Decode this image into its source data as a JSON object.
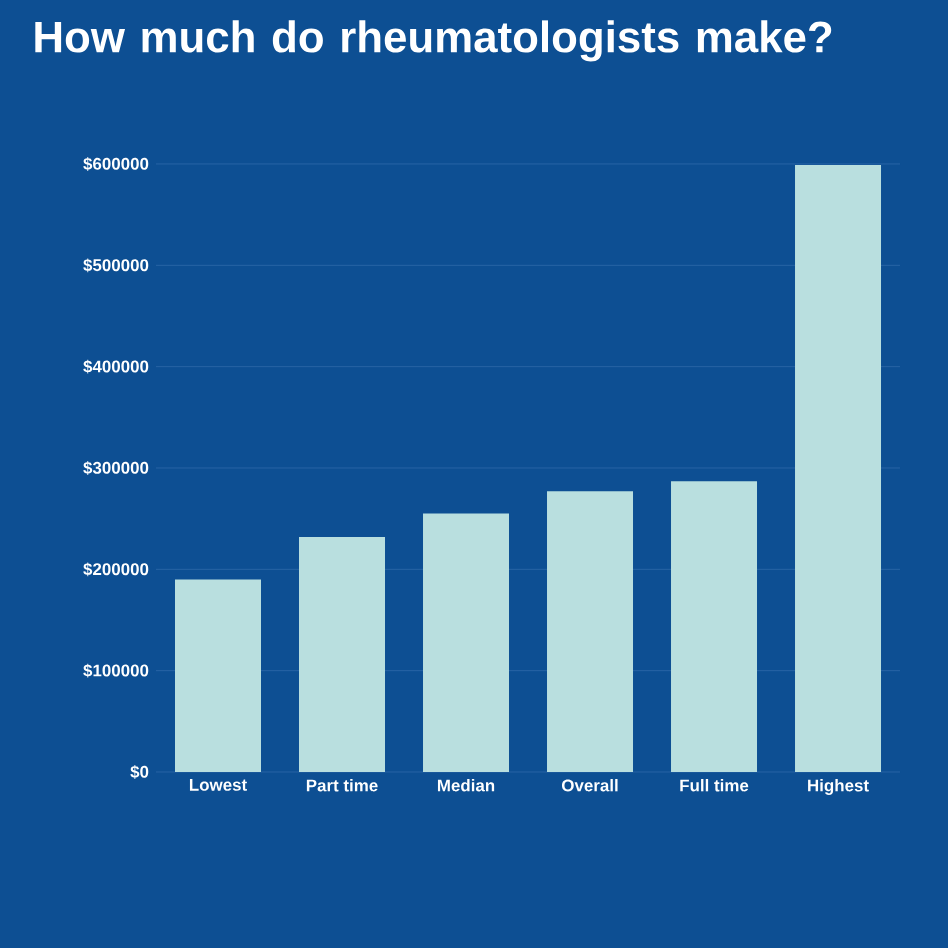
{
  "chart_data": {
    "type": "bar",
    "title": "How much do rheumatologists make?",
    "categories": [
      "Lowest",
      "Part time",
      "Median",
      "Overall",
      "Full time",
      "Highest"
    ],
    "values": [
      190000,
      232000,
      255000,
      277000,
      287000,
      599000
    ],
    "color": "#b9dfdf",
    "ylim": [
      0,
      600000
    ],
    "yticks": [
      {
        "value": 0,
        "label": "$0"
      },
      {
        "value": 100000,
        "label": "$100000"
      },
      {
        "value": 200000,
        "label": "$200000"
      },
      {
        "value": 300000,
        "label": "$300000"
      },
      {
        "value": 400000,
        "label": "$400000"
      },
      {
        "value": 500000,
        "label": "$500000"
      },
      {
        "value": 600000,
        "label": "$600000"
      }
    ],
    "grid": "y"
  }
}
